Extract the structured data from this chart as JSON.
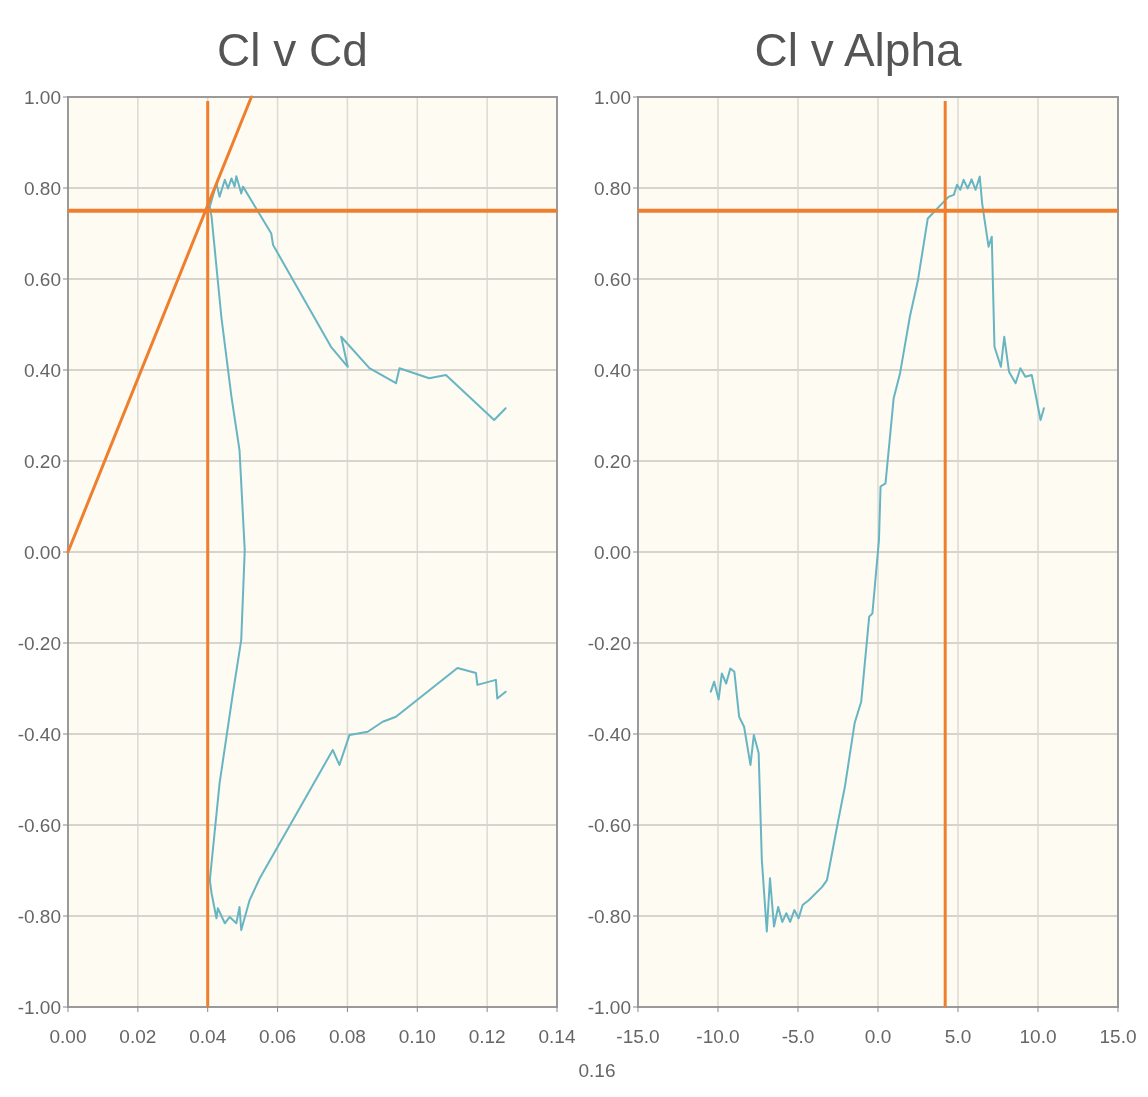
{
  "chart_data": [
    {
      "type": "line",
      "title": "Cl v Cd",
      "grid": true,
      "marker": "none",
      "line_style": "solid",
      "xlim": [
        0,
        0.14
      ],
      "ylim": [
        -1,
        1
      ],
      "xticks": [
        {
          "value": 0,
          "label": "0.00"
        },
        {
          "value": 0.02,
          "label": "0.02"
        },
        {
          "value": 0.04,
          "label": "0.04"
        },
        {
          "value": 0.06,
          "label": "0.06"
        },
        {
          "value": 0.08,
          "label": "0.08"
        },
        {
          "value": 0.1,
          "label": "0.10"
        },
        {
          "value": 0.12,
          "label": "0.12"
        },
        {
          "value": 0.14,
          "label": "0.14"
        }
      ],
      "yticks": [
        {
          "value": -1,
          "label": "-1.00"
        },
        {
          "value": -0.8,
          "label": "-0.80"
        },
        {
          "value": -0.6,
          "label": "-0.60"
        },
        {
          "value": -0.4,
          "label": "-0.40"
        },
        {
          "value": -0.2,
          "label": "-0.20"
        },
        {
          "value": 0,
          "label": "0.00"
        },
        {
          "value": 0.2,
          "label": "0.20"
        },
        {
          "value": 0.4,
          "label": "0.40"
        },
        {
          "value": 0.6,
          "label": "0.60"
        },
        {
          "value": 0.8,
          "label": "0.80"
        },
        {
          "value": 1,
          "label": "1.00"
        }
      ],
      "annotations": [
        "0.16"
      ],
      "ref_lines": [
        {
          "axis": "y",
          "value": 0.75,
          "color": "#ef7f2d"
        },
        {
          "axis": "x",
          "value": 0.04,
          "color": "#ef7f2d"
        }
      ],
      "series": [
        {
          "type": "line",
          "color": "#67b5c3",
          "x": [
            0.1253,
            0.1229,
            0.1225,
            0.1172,
            0.1168,
            0.1115,
            0.0939,
            0.0901,
            0.0858,
            0.0806,
            0.0777,
            0.0758,
            0.0644,
            0.0549,
            0.052,
            0.0496,
            0.0491,
            0.0482,
            0.0463,
            0.0449,
            0.0429,
            0.0425,
            0.0411,
            0.0406,
            0.0434,
            0.0472,
            0.0496,
            0.0506,
            0.0491,
            0.0468,
            0.0439,
            0.0411,
            0.0406,
            0.0425,
            0.0434,
            0.0449,
            0.0458,
            0.0468,
            0.0477,
            0.0482,
            0.0496,
            0.0501,
            0.0582,
            0.0587,
            0.0753,
            0.0801,
            0.0782,
            0.0863,
            0.0939,
            0.0949,
            0.1034,
            0.1082,
            0.122,
            0.1253
          ],
          "values": [
            -0.307,
            -0.322,
            -0.281,
            -0.292,
            -0.266,
            -0.255,
            -0.362,
            -0.373,
            -0.395,
            -0.402,
            -0.468,
            -0.435,
            -0.589,
            -0.717,
            -0.765,
            -0.831,
            -0.78,
            -0.816,
            -0.802,
            -0.816,
            -0.783,
            -0.805,
            -0.75,
            -0.721,
            -0.508,
            -0.311,
            -0.193,
            0.004,
            0.224,
            0.341,
            0.517,
            0.737,
            0.759,
            0.81,
            0.781,
            0.818,
            0.799,
            0.821,
            0.803,
            0.826,
            0.788,
            0.803,
            0.7,
            0.675,
            0.451,
            0.407,
            0.473,
            0.404,
            0.371,
            0.404,
            0.382,
            0.389,
            0.29,
            0.316
          ]
        },
        {
          "type": "line",
          "color": "#ef7f2d",
          "x": [
            0,
            0.0525
          ],
          "values": [
            0,
            1
          ]
        }
      ]
    },
    {
      "type": "line",
      "title": "Cl v Alpha",
      "grid": true,
      "marker": "none",
      "line_style": "solid",
      "xlim": [
        -15,
        15
      ],
      "ylim": [
        -1,
        1
      ],
      "xticks": [
        {
          "value": -15,
          "label": "-15.0"
        },
        {
          "value": -10,
          "label": "-10.0"
        },
        {
          "value": -5,
          "label": "-5.0"
        },
        {
          "value": 0,
          "label": "0.0"
        },
        {
          "value": 5,
          "label": "5.0"
        },
        {
          "value": 10,
          "label": "10.0"
        },
        {
          "value": 15,
          "label": "15.0"
        }
      ],
      "yticks": [
        {
          "value": -1,
          "label": "-1.00"
        },
        {
          "value": -0.8,
          "label": "-0.80"
        },
        {
          "value": -0.6,
          "label": "-0.60"
        },
        {
          "value": -0.4,
          "label": "-0.40"
        },
        {
          "value": -0.2,
          "label": "-0.20"
        },
        {
          "value": 0,
          "label": "0.00"
        },
        {
          "value": 0.2,
          "label": "0.20"
        },
        {
          "value": 0.4,
          "label": "0.40"
        },
        {
          "value": 0.6,
          "label": "0.60"
        },
        {
          "value": 0.8,
          "label": "0.80"
        },
        {
          "value": 1,
          "label": "1.00"
        }
      ],
      "ref_lines": [
        {
          "axis": "y",
          "value": 0.75,
          "color": "#ef7f2d"
        },
        {
          "axis": "x",
          "value": 4.2,
          "color": "#ef7f2d"
        }
      ],
      "series": [
        {
          "type": "line",
          "color": "#67b5c3",
          "x": [
            -10.45,
            -10.24,
            -9.96,
            -9.76,
            -9.49,
            -9.23,
            -8.98,
            -8.68,
            -8.37,
            -7.97,
            -7.76,
            -7.46,
            -7.26,
            -6.95,
            -6.75,
            -6.5,
            -6.24,
            -5.98,
            -5.73,
            -5.49,
            -5.23,
            -4.96,
            -4.71,
            -4.31,
            -3.49,
            -3.19,
            -2.48,
            -2.07,
            -1.46,
            -1.05,
            -0.55,
            -0.35,
            0.06,
            0.16,
            0.47,
            0.98,
            1.38,
            1.99,
            2.5,
            3.11,
            3.41,
            3.92,
            4.43,
            4.74,
            4.94,
            5.14,
            5.35,
            5.61,
            5.85,
            6.1,
            6.36,
            6.51,
            6.66,
            6.91,
            7.11,
            7.28,
            7.68,
            7.89,
            8.19,
            8.6,
            8.9,
            9.21,
            9.61,
            10.16,
            10.37
          ],
          "values": [
            -0.307,
            -0.285,
            -0.324,
            -0.267,
            -0.289,
            -0.256,
            -0.263,
            -0.362,
            -0.384,
            -0.468,
            -0.402,
            -0.442,
            -0.677,
            -0.834,
            -0.717,
            -0.823,
            -0.78,
            -0.813,
            -0.794,
            -0.813,
            -0.787,
            -0.805,
            -0.776,
            -0.765,
            -0.736,
            -0.721,
            -0.589,
            -0.516,
            -0.376,
            -0.329,
            -0.142,
            -0.135,
            0.026,
            0.144,
            0.151,
            0.338,
            0.393,
            0.517,
            0.598,
            0.733,
            0.744,
            0.763,
            0.781,
            0.785,
            0.807,
            0.796,
            0.818,
            0.799,
            0.819,
            0.796,
            0.825,
            0.766,
            0.73,
            0.671,
            0.693,
            0.451,
            0.407,
            0.473,
            0.396,
            0.371,
            0.404,
            0.385,
            0.389,
            0.29,
            0.316
          ]
        }
      ]
    }
  ]
}
